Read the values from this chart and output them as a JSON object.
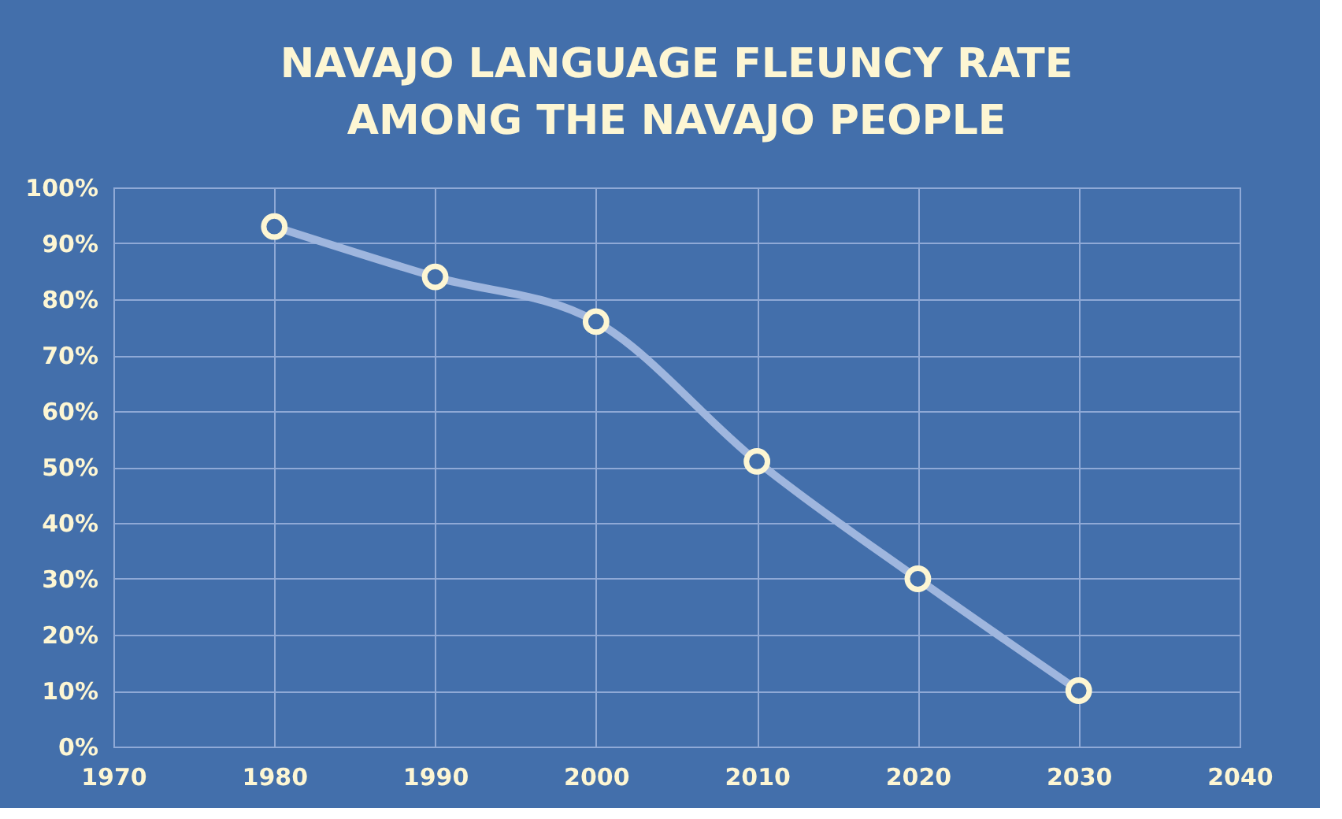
{
  "chart_data": {
    "type": "line",
    "title": [
      "NAVAJO LANGUAGE FLEUNCY RATE",
      "AMONG THE NAVAJO PEOPLE"
    ],
    "x": [
      1980,
      1990,
      2000,
      2010,
      2020,
      2030
    ],
    "series": [
      {
        "color": "#9fb6de",
        "values": [
          93,
          84,
          76,
          51,
          30,
          10
        ]
      }
    ],
    "xlim": [
      1970,
      2040
    ],
    "xticks": [
      1970,
      1980,
      1990,
      2000,
      2010,
      2020,
      2030,
      2040
    ],
    "ylim": [
      0,
      100
    ],
    "yticks": [
      {
        "value": 0,
        "label": "0%"
      },
      {
        "value": 10,
        "label": "10%"
      },
      {
        "value": 20,
        "label": "20%"
      },
      {
        "value": 30,
        "label": "30%"
      },
      {
        "value": 40,
        "label": "40%"
      },
      {
        "value": 50,
        "label": "50%"
      },
      {
        "value": 60,
        "label": "60%"
      },
      {
        "value": 70,
        "label": "70%"
      },
      {
        "value": 80,
        "label": "80%"
      },
      {
        "value": 90,
        "label": "90%"
      },
      {
        "value": 100,
        "label": "100%"
      }
    ],
    "grid": true,
    "marker": "circle",
    "line_style": "solid"
  }
}
